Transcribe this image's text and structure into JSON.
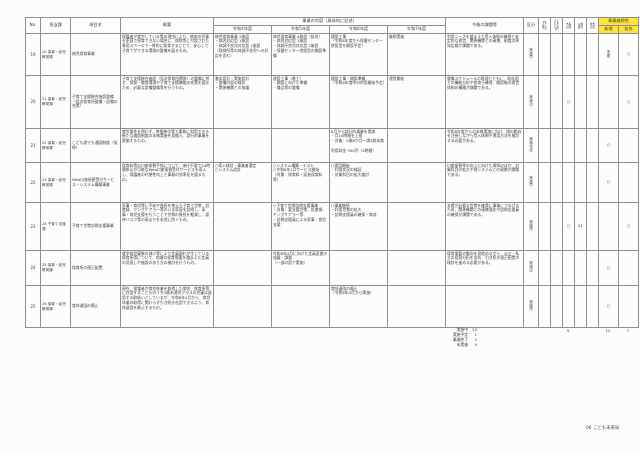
{
  "page": {
    "footer": "06 こども未来局"
  },
  "table": {
    "headers": {
      "no": "No.",
      "department": "担当課",
      "project": "項目名",
      "summary": "概要",
      "content_group": "事業の内容（具体的に記述）",
      "years": [
        "令和4年度",
        "令和5年度",
        "令和6年度",
        "令和7年度"
      ],
      "issues": "今後の課題等",
      "category": "区分",
      "narrow": [
        "R5完了予定",
        "子どもまんなか",
        "市長公約",
        "公約番号",
        "総合計画"
      ],
      "continuity_group": "事業継続性",
      "continuity": [
        "新規",
        "拡充"
      ]
    },
    "rows": [
      {
        "no": "19",
        "department": "20 保育・幼児教育課",
        "project": "病児保育事業",
        "summary": "保護者が就労している等の理由により、病気の児童を家庭で保育できない場合に、病院等に付設された専用スペースで一時的に保育することで、安心して子育てができる環境の整備を図るもの。",
        "r4": "病児保育事業 2施設\n・病児対応型 1施設\n・体調不良児対応型 1施設\n（保育所等の体調不良児への対応を含む）",
        "r5": "病児保育事業 4施設（拡充）\n・病児対応型 2施設\n・体調不良児対応型 2施設\n・保健センター併設型の開設準備",
        "r6": "建設工事\n（令和6年度から保健センター併設型を開設予定）",
        "r7": "継続実施",
        "issues": "利用ニーズを踏まえた受入体制の確保と安定的な運営、関係機関との連携、制度の周知広報が課題である。",
        "status": "実施中",
        "marks": {
          "r5_done": "",
          "kodomo_mannaka": "",
          "mayor_pledge": "",
          "pledge_number": "",
          "sogo_keikaku": "",
          "new": "変更",
          "expand": "○"
        }
      },
      {
        "no": "20",
        "department": "21 保育・幼児教育課",
        "project": "子育て支援総合施設整備（見次保育所整備・設備の充実）",
        "summary": "子育て支援総合施設（見次保育所関係）の整備に併せ、保育・教育環境や子育て支援機能の充実を図るため、必要な設備整備等を行うもの。",
        "r4": "基本設計・実施設計\n・整備内容の検討\n・関係機関との協議",
        "r5": "建設工事（着工）\n・開設に向けた準備\n・備品等の整備",
        "r6": "建設工事・開設準備\n（令和6年度中の供用開始予定）",
        "r7": "運営開始",
        "issues": "整備スケジュールの管理とともに、既存園との機能分担や保育士確保、開設後の運営体制の構築が課題である。",
        "status": "実施中",
        "marks": {
          "r5_done": "",
          "kodomo_mannaka": "",
          "mayor_pledge": "○",
          "pledge_number": "",
          "sogo_keikaku": "",
          "new": "",
          "expand": "○"
        }
      },
      {
        "no": "21",
        "department": "22 保育・幼児教育課",
        "project": "こども誰でも通園制度（仮称）",
        "summary": "就労要件を問わず、時間単位等で柔軟に利用できる新たな通園制度の本格実施を見据え、試行的事業を実施するもの。",
        "r4": "",
        "r5": "",
        "r6": "6月から試行的事業を実施\n・月10時間を上限\n・対象：0歳6か月〜満3歳未満\n\n利用料金 300円（1時間）",
        "r7": "",
        "issues": "令和8年度からの本格実施に向け、国の動向を注視しながら受入体制や運用方法を検討する必要がある。",
        "status": "実施予定",
        "marks": {
          "r5_done": "",
          "kodomo_mannaka": "",
          "mayor_pledge": "",
          "pledge_number": "",
          "sogo_keikaku": "",
          "new": "○",
          "expand": ""
        }
      },
      {
        "no": "22",
        "department": "23 保育・幼児教育課",
        "project": "Web口座振替受付サービス・システム構築事業",
        "summary": "保育料等の口座振替手続について、来庁不要で24時間申込が可能なWeb口座振替受付サービスを導入し、保護者の利便性向上と事務の効率化を図るもの。",
        "r4": "○導入検討・事業者選定\n○システム設計",
        "r5": "○システム構築・テスト\n○令和6年1月サービス開始\n（対象：保育料・延長保育料 等）",
        "r6": "○運用開始\n・利用状況の検証\n・対象科目の拡大検討",
        "r7": "",
        "issues": "口座振替率の向上に向けた周知のほか、対象科目の拡大や他システムとの連携が課題である。",
        "status": "実施中",
        "marks": {
          "r5_done": "",
          "kodomo_mannaka": "",
          "mayor_pledge": "",
          "pledge_number": "",
          "sogo_keikaku": "",
          "new": "○",
          "expand": ""
        }
      },
      {
        "no": "23",
        "department": "24 子育て支援課",
        "project": "子育て世帯訪問支援事業",
        "summary": "家事・育児等に不安や負担を抱えた子育て世帯、妊産婦、ヤングケアラー等のいる家庭を訪問し、家事・育児支援を行うことで世帯の負担を軽減し、虐待リスク等の高まりを未然に防ぐもの。",
        "r4": "",
        "r5": "○子育て世帯訪問支援事業\n・対象：要支援世帯、妊産婦、ヤングケアラー等\n・訪問支援員による家事・育児支援",
        "r6": "○事業継続\n・利用世帯の拡大\n・訪問支援員の確保・育成",
        "r7": "",
        "issues": "支援が必要な世帯を確実に事業につなげるため、関係機関との連携強化や訪問支援員の確保が課題である。",
        "status": "実施中",
        "marks": {
          "r5_done": "",
          "kodomo_mannaka": "",
          "mayor_pledge": "○",
          "pledge_number": "21",
          "sogo_keikaku": "",
          "new": "",
          "expand": "○"
        }
      },
      {
        "no": "24",
        "department": "25 保育・幼児教育課",
        "project": "保育所の適正配置",
        "summary": "就学前児童数の減少等により定員割れが生じている保育所等について、地域の保育需要を踏まえた定員の見直しや施設のあり方の検討を行うもの。",
        "r4": "",
        "r5": "令和6年4月に向けた定員変更の協議・調整\n（一部の園で実施）",
        "r6": "",
        "r7": "",
        "issues": "保育需要の動向を見極めながら、公立・私立の役割分担を含め、引き続き適正配置の検討を進める必要がある。",
        "status": "実施中",
        "marks": {
          "r5_done": "",
          "kodomo_mannaka": "",
          "mayor_pledge": "",
          "pledge_number": "",
          "sogo_keikaku": "",
          "new": "○",
          "expand": ""
        }
      },
      {
        "no": "25",
        "department": "26 保育・幼児教育課",
        "project": "育休退園の廃止",
        "summary": "現在、保護者が育児休業を取得した場合、保育所等に在園するこどものうち3歳未満児クラスの児童は退園する取扱いとしているが、令和6年4月から、育児休業の取得に関わらず引き続き在園できるよう、育休退園を廃止するもの。",
        "r4": "",
        "r5": "",
        "r6": "育休退園の廃止\n（令和6年4月から実施）",
        "r7": "",
        "issues": "",
        "status": "実施中",
        "marks": {
          "r5_done": "",
          "kodomo_mannaka": "",
          "mayor_pledge": "",
          "pledge_number": "",
          "sogo_keikaku": "",
          "new": "○",
          "expand": ""
        }
      }
    ]
  },
  "summary": {
    "items": [
      {
        "label": "実施中",
        "value": "20"
      },
      {
        "label": "実施予定",
        "value": "1"
      },
      {
        "label": "事業終了",
        "value": "2"
      },
      {
        "label": "未実施",
        "value": "0"
      }
    ]
  },
  "totals": {
    "mayor_pledge": "9",
    "new": "12",
    "expand": "7"
  },
  "colors": {
    "highlight": "#ffe23c"
  }
}
